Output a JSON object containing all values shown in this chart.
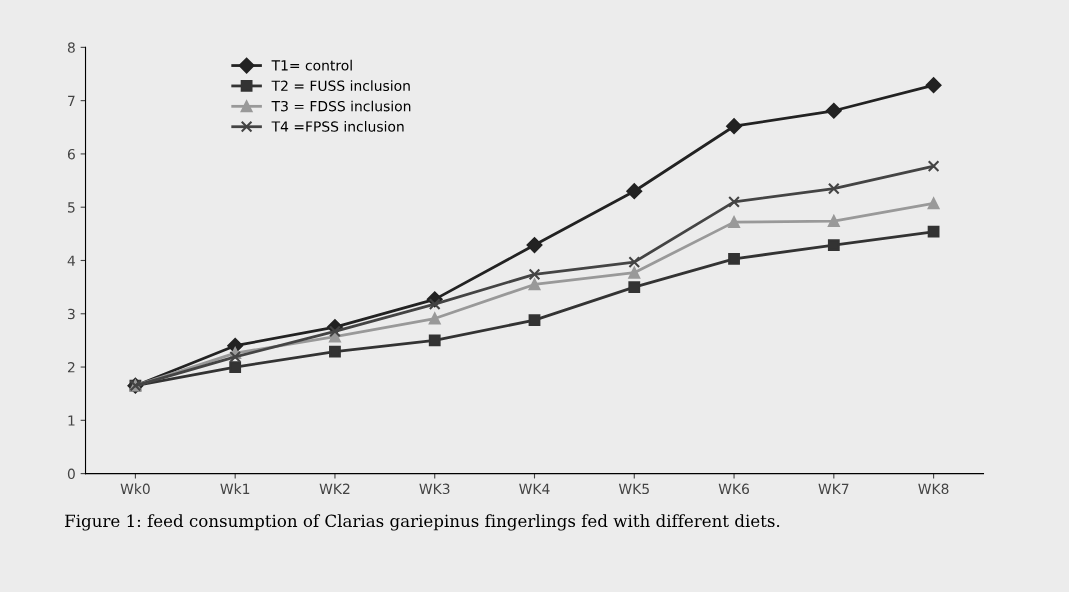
{
  "chart_data": {
    "type": "line",
    "categories": [
      "Wk0",
      "Wk1",
      "WK2",
      "WK3",
      "WK4",
      "WK5",
      "WK6",
      "WK7",
      "WK8"
    ],
    "series": [
      {
        "name": "T1= control",
        "color": "#222222",
        "marker": "diamond",
        "values": [
          1.65,
          2.4,
          2.75,
          3.27,
          4.29,
          5.3,
          6.52,
          6.81,
          7.29
        ]
      },
      {
        "name": "T2 = FUSS inclusion",
        "color": "#333333",
        "marker": "square",
        "values": [
          1.65,
          2.0,
          2.29,
          2.5,
          2.88,
          3.5,
          4.03,
          4.29,
          4.54
        ]
      },
      {
        "name": "T3 = FDSS inclusion",
        "color": "#999999",
        "marker": "triangle",
        "values": [
          1.65,
          2.26,
          2.57,
          2.91,
          3.55,
          3.77,
          4.72,
          4.74,
          5.07
        ]
      },
      {
        "name": "T4 =FPSS inclusion",
        "color": "#444444",
        "marker": "cross",
        "values": [
          1.65,
          2.19,
          2.67,
          3.18,
          3.74,
          3.97,
          5.1,
          5.35,
          5.77
        ]
      }
    ],
    "ylim": [
      0,
      8
    ],
    "yticks": [
      0,
      1,
      2,
      3,
      4,
      5,
      6,
      7,
      8
    ],
    "grid": false,
    "legend": "top left",
    "line_style": "solid",
    "annotations": [
      "Figure 1: feed consumption of Clarias gariepinus fingerlings fed with different diets."
    ]
  }
}
